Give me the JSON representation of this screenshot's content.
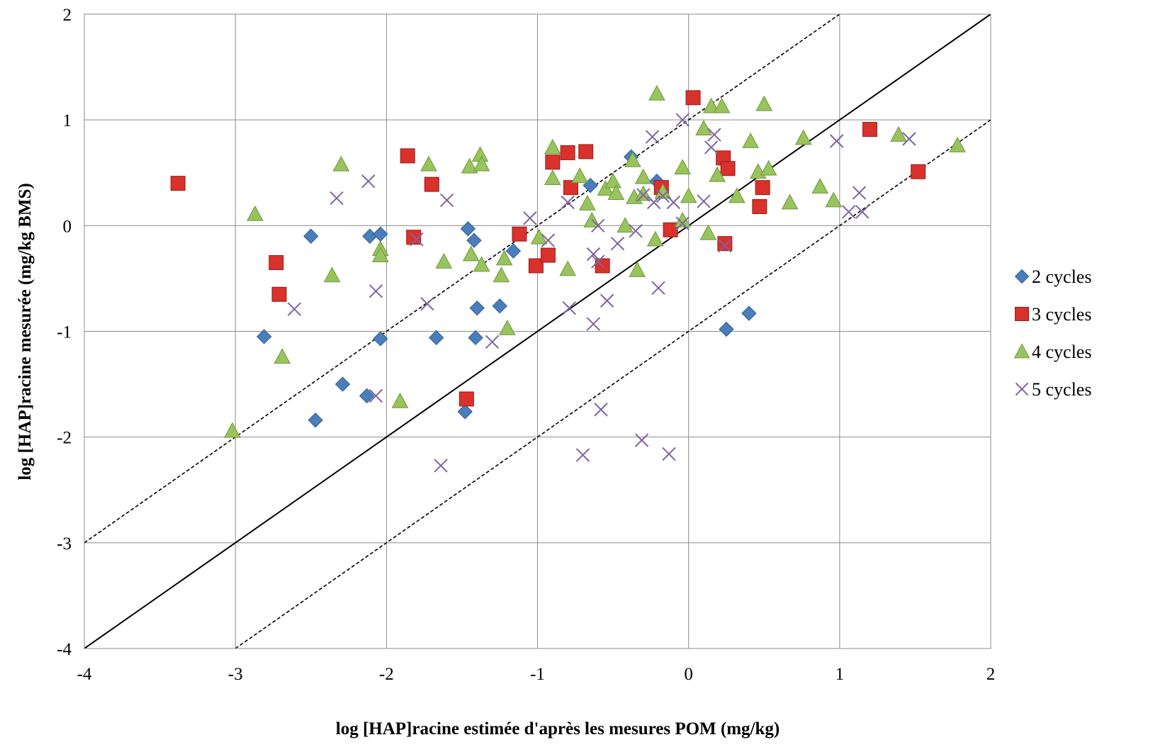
{
  "chart_data": {
    "type": "scatter",
    "xlabel": "log [HAP]racine estimée d'après les mesures POM (mg/kg)",
    "ylabel": "log [HAP]racine mesurée (mg/kg BMS)",
    "xlim": [
      -4,
      2
    ],
    "ylim": [
      -4,
      2
    ],
    "xticks": [
      "-4",
      "-3",
      "-2",
      "-1",
      "0",
      "1",
      "2"
    ],
    "yticks": [
      "-4",
      "-3",
      "-2",
      "-1",
      "0",
      "1",
      "2"
    ],
    "grid": true,
    "legend_position": "right",
    "reference_lines": [
      {
        "style": "solid",
        "points": [
          [
            -4,
            -4
          ],
          [
            2,
            2
          ]
        ]
      },
      {
        "style": "dashed",
        "points": [
          [
            -4,
            -3
          ],
          [
            1,
            2
          ]
        ]
      },
      {
        "style": "dashed",
        "points": [
          [
            -3,
            -4
          ],
          [
            2,
            1
          ]
        ]
      }
    ],
    "series": [
      {
        "name": "2 cycles",
        "marker": "diamond",
        "color": "#4a7ebb",
        "points": [
          [
            -2.5,
            -0.1
          ],
          [
            -2.81,
            -1.05
          ],
          [
            -2.47,
            -1.84
          ],
          [
            -2.29,
            -1.5
          ],
          [
            -2.13,
            -1.61
          ],
          [
            -2.11,
            -0.1
          ],
          [
            -2.04,
            -0.08
          ],
          [
            -2.04,
            -1.07
          ],
          [
            -1.67,
            -1.06
          ],
          [
            -1.46,
            -0.03
          ],
          [
            -1.48,
            -1.76
          ],
          [
            -1.42,
            -0.14
          ],
          [
            -1.4,
            -0.78
          ],
          [
            -1.41,
            -1.06
          ],
          [
            -1.25,
            -0.76
          ],
          [
            -1.16,
            -0.24
          ],
          [
            -0.65,
            0.38
          ],
          [
            -0.38,
            0.65
          ],
          [
            -0.21,
            0.42
          ],
          [
            0.25,
            -0.98
          ],
          [
            0.4,
            -0.83
          ]
        ]
      },
      {
        "name": "3 cycles",
        "marker": "square",
        "color": "#d9312b",
        "points": [
          [
            -3.38,
            0.4
          ],
          [
            -2.73,
            -0.35
          ],
          [
            -2.71,
            -0.65
          ],
          [
            -1.86,
            0.66
          ],
          [
            -1.82,
            -0.11
          ],
          [
            -1.7,
            0.39
          ],
          [
            -1.47,
            -1.64
          ],
          [
            -1.12,
            -0.08
          ],
          [
            -1.01,
            -0.38
          ],
          [
            -0.93,
            -0.28
          ],
          [
            -0.9,
            0.6
          ],
          [
            -0.8,
            0.69
          ],
          [
            -0.78,
            0.36
          ],
          [
            -0.68,
            0.7
          ],
          [
            -0.57,
            -0.38
          ],
          [
            -0.18,
            0.36
          ],
          [
            -0.12,
            -0.04
          ],
          [
            0.03,
            1.21
          ],
          [
            0.23,
            0.64
          ],
          [
            0.24,
            -0.17
          ],
          [
            0.26,
            0.54
          ],
          [
            0.47,
            0.18
          ],
          [
            0.49,
            0.36
          ],
          [
            1.2,
            0.91
          ],
          [
            1.52,
            0.51
          ]
        ]
      },
      {
        "name": "4 cycles",
        "marker": "triangle",
        "color": "#98c35d",
        "points": [
          [
            -3.02,
            -1.94
          ],
          [
            -2.87,
            0.11
          ],
          [
            -2.69,
            -1.24
          ],
          [
            -2.36,
            -0.47
          ],
          [
            -2.3,
            0.58
          ],
          [
            -2.04,
            -0.22
          ],
          [
            -2.04,
            -0.28
          ],
          [
            -1.91,
            -1.66
          ],
          [
            -1.72,
            0.58
          ],
          [
            -1.62,
            -0.34
          ],
          [
            -1.45,
            0.56
          ],
          [
            -1.44,
            -0.27
          ],
          [
            -1.38,
            0.67
          ],
          [
            -1.37,
            0.58
          ],
          [
            -1.37,
            -0.37
          ],
          [
            -1.24,
            -0.47
          ],
          [
            -1.22,
            -0.31
          ],
          [
            -1.2,
            -0.97
          ],
          [
            -0.99,
            -0.11
          ],
          [
            -0.9,
            0.74
          ],
          [
            -0.9,
            0.45
          ],
          [
            -0.8,
            -0.41
          ],
          [
            -0.72,
            0.47
          ],
          [
            -0.67,
            0.21
          ],
          [
            -0.64,
            0.05
          ],
          [
            -0.55,
            0.35
          ],
          [
            -0.5,
            0.42
          ],
          [
            -0.48,
            0.31
          ],
          [
            -0.42,
            0.0
          ],
          [
            -0.37,
            0.62
          ],
          [
            -0.36,
            0.27
          ],
          [
            -0.34,
            -0.42
          ],
          [
            -0.3,
            0.3
          ],
          [
            -0.3,
            0.46
          ],
          [
            -0.21,
            1.25
          ],
          [
            -0.22,
            -0.13
          ],
          [
            -0.17,
            0.32
          ],
          [
            -0.04,
            0.55
          ],
          [
            -0.04,
            0.05
          ],
          [
            0.0,
            0.28
          ],
          [
            0.1,
            0.92
          ],
          [
            0.13,
            -0.07
          ],
          [
            0.15,
            1.13
          ],
          [
            0.19,
            0.48
          ],
          [
            0.22,
            1.13
          ],
          [
            0.32,
            0.28
          ],
          [
            0.41,
            0.8
          ],
          [
            0.46,
            0.51
          ],
          [
            0.5,
            1.15
          ],
          [
            0.53,
            0.54
          ],
          [
            0.67,
            0.22
          ],
          [
            0.76,
            0.83
          ],
          [
            0.87,
            0.37
          ],
          [
            0.96,
            0.24
          ],
          [
            1.39,
            0.86
          ],
          [
            1.78,
            0.76
          ]
        ]
      },
      {
        "name": "5 cycles",
        "marker": "x",
        "color": "#8064a2",
        "points": [
          [
            -2.61,
            -0.79
          ],
          [
            -2.33,
            0.26
          ],
          [
            -2.12,
            0.42
          ],
          [
            -2.07,
            -0.62
          ],
          [
            -2.07,
            -1.61
          ],
          [
            -1.8,
            -0.13
          ],
          [
            -1.73,
            -0.74
          ],
          [
            -1.6,
            0.24
          ],
          [
            -1.64,
            -2.27
          ],
          [
            -1.3,
            -1.1
          ],
          [
            -1.05,
            0.07
          ],
          [
            -0.93,
            -0.14
          ],
          [
            -0.8,
            0.22
          ],
          [
            -0.79,
            -0.78
          ],
          [
            -0.63,
            -0.27
          ],
          [
            -0.63,
            -0.93
          ],
          [
            -0.6,
            0.0
          ],
          [
            -0.6,
            -0.34
          ],
          [
            -0.58,
            -1.74
          ],
          [
            -0.54,
            -0.71
          ],
          [
            -0.47,
            -0.17
          ],
          [
            -0.7,
            -2.17
          ],
          [
            -0.35,
            -0.05
          ],
          [
            -0.3,
            0.29
          ],
          [
            -0.31,
            -2.03
          ],
          [
            -0.24,
            0.84
          ],
          [
            -0.23,
            0.22
          ],
          [
            -0.2,
            -0.59
          ],
          [
            -0.17,
            0.28
          ],
          [
            -0.13,
            -2.16
          ],
          [
            -0.1,
            0.22
          ],
          [
            -0.04,
            1.0
          ],
          [
            -0.04,
            0.02
          ],
          [
            0.1,
            0.23
          ],
          [
            0.15,
            0.74
          ],
          [
            0.17,
            0.86
          ],
          [
            0.24,
            -0.19
          ],
          [
            0.98,
            0.8
          ],
          [
            1.06,
            0.13
          ],
          [
            1.13,
            0.31
          ],
          [
            1.15,
            0.13
          ],
          [
            1.46,
            0.82
          ]
        ]
      }
    ]
  }
}
